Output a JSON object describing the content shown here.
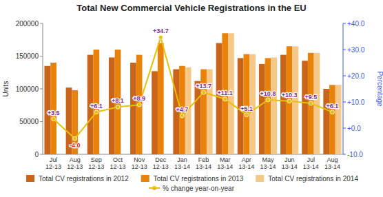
{
  "chart_data": {
    "type": "bar",
    "title": "Total New Commercial Vehicle Registrations in the EU",
    "categories": [
      "Jul\n12-13",
      "Aug\n12-13",
      "Sep\n12-13",
      "Oct\n12-13",
      "Nov\n12-13",
      "Dec\n12-13",
      "Jan\n13-14",
      "Feb\n13-14",
      "Mar\n13-14",
      "Apr\n13-14",
      "May\n13-14",
      "Jun\n13-14",
      "Jul\n13-14",
      "Aug\n13-14"
    ],
    "series": [
      {
        "name": "Total CV registrations in 2012",
        "color": "#C8651A",
        "values": [
          135000,
          102000,
          152000,
          148000,
          140000,
          127000,
          130000,
          112000,
          170000,
          147000,
          138000,
          152000,
          143000,
          100000
        ]
      },
      {
        "name": "Total CV registrations in 2013",
        "color": "#E8820A",
        "values": [
          140000,
          98000,
          160000,
          160000,
          152000,
          170000,
          135000,
          130000,
          185000,
          153000,
          147000,
          165000,
          155000,
          106000
        ]
      },
      {
        "name": "Total CV registrations in 2014",
        "color": "#F5C888",
        "values": [
          null,
          null,
          null,
          null,
          null,
          null,
          133000,
          130000,
          185000,
          153000,
          148000,
          165000,
          155000,
          106000
        ]
      },
      {
        "name": "% change year-on-year",
        "type": "line",
        "axis": "y2",
        "color": "#E8C000",
        "marker": "circle",
        "values": [
          3.5,
          -4.0,
          6.1,
          8.1,
          8.9,
          34.7,
          4.7,
          13.7,
          11.1,
          5.1,
          10.8,
          10.3,
          9.5,
          6.1
        ],
        "value_labels": [
          "+3.5",
          "-4.0",
          "+6.1",
          "+8.1",
          "+8.9",
          "+34.7",
          "+4.7",
          "+13.7",
          "+11.1",
          "+5.1",
          "+10.8",
          "+10.3",
          "+9.5",
          "+6.1"
        ],
        "data_labels": true
      }
    ],
    "ylabel": "Units",
    "y2label": "Percentage",
    "ylim": [
      0,
      200000
    ],
    "yticks": [
      0,
      50000,
      100000,
      150000,
      200000
    ],
    "y2lim": [
      -10.0,
      40.0
    ],
    "y2ticks": [
      {
        "value": -10.0,
        "label": "-10.0"
      },
      {
        "value": 0.0,
        "label": "+0.0"
      },
      {
        "value": 10.0,
        "label": "+10.0"
      },
      {
        "value": 20.0,
        "label": "+20.0"
      },
      {
        "value": 30.0,
        "label": "+30.0"
      },
      {
        "value": 40.0,
        "label": "+40.0"
      }
    ],
    "grid": false,
    "legend": "bottom"
  }
}
